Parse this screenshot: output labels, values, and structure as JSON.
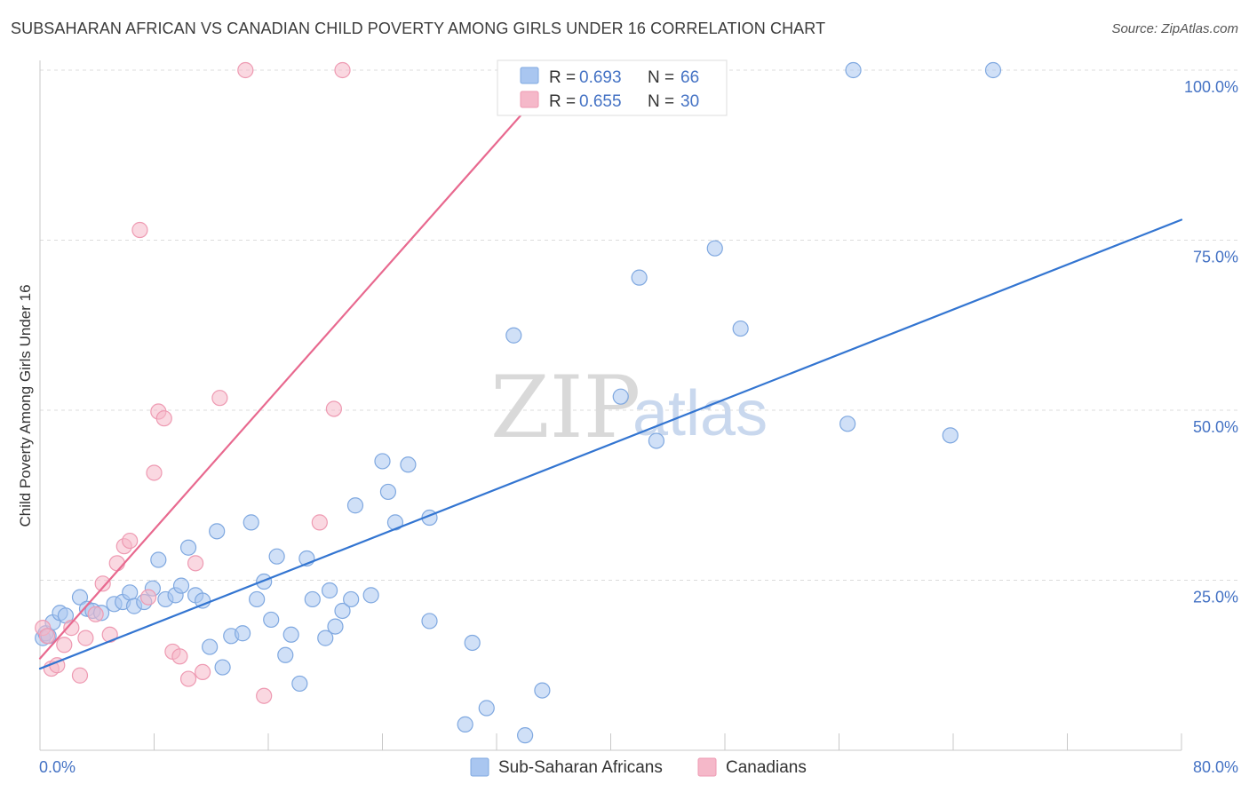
{
  "title": "SUBSAHARAN AFRICAN VS CANADIAN CHILD POVERTY AMONG GIRLS UNDER 16 CORRELATION CHART",
  "source": "Source: ZipAtlas.com",
  "watermark": {
    "zip": "ZIP",
    "atlas": "atlas"
  },
  "chart_data": {
    "type": "scatter",
    "xlabel": "",
    "ylabel": "Child Poverty Among Girls Under 16",
    "xlim": [
      0,
      80
    ],
    "ylim": [
      0,
      100
    ],
    "x_tick_labels": [
      {
        "value": 0,
        "label": "0.0%"
      },
      {
        "value": 80,
        "label": "80.0%"
      }
    ],
    "y_tick_labels": [
      {
        "value": 25,
        "label": "25.0%"
      },
      {
        "value": 50,
        "label": "50.0%"
      },
      {
        "value": 75,
        "label": "75.0%"
      },
      {
        "value": 100,
        "label": "100.0%"
      }
    ],
    "grid": "horizontal dashed",
    "legend": {
      "placement": "top-center",
      "entries": [
        {
          "r_label": "R =",
          "r_value": "0.693",
          "n_label": "N =",
          "n_value": "66",
          "color": "#a9c6f0"
        },
        {
          "r_label": "R =",
          "r_value": "0.655",
          "n_label": "N =",
          "n_value": "30",
          "color": "#f5b8c9"
        }
      ]
    },
    "series": [
      {
        "name": "Sub-Saharan Africans",
        "color": "#a9c6f0",
        "edge_color": "#7fa8e0",
        "trend_color": "#3375d1",
        "trend": {
          "x": [
            0,
            80
          ],
          "y": [
            12.0,
            78.0
          ]
        },
        "points": [
          [
            0.2,
            16.5
          ],
          [
            0.4,
            17.2
          ],
          [
            0.6,
            16.8
          ],
          [
            0.9,
            18.8
          ],
          [
            1.4,
            20.2
          ],
          [
            1.8,
            19.8
          ],
          [
            2.8,
            22.5
          ],
          [
            3.3,
            20.8
          ],
          [
            3.7,
            20.5
          ],
          [
            4.3,
            20.2
          ],
          [
            5.2,
            21.5
          ],
          [
            5.8,
            21.8
          ],
          [
            6.3,
            23.2
          ],
          [
            6.6,
            21.2
          ],
          [
            7.3,
            21.8
          ],
          [
            7.9,
            23.8
          ],
          [
            8.3,
            28.0
          ],
          [
            8.8,
            22.2
          ],
          [
            9.5,
            22.8
          ],
          [
            9.9,
            24.2
          ],
          [
            10.4,
            29.8
          ],
          [
            10.9,
            22.8
          ],
          [
            11.4,
            22.0
          ],
          [
            11.9,
            15.2
          ],
          [
            12.4,
            32.2
          ],
          [
            12.8,
            12.2
          ],
          [
            13.4,
            16.8
          ],
          [
            14.2,
            17.2
          ],
          [
            14.8,
            33.5
          ],
          [
            15.2,
            22.2
          ],
          [
            15.7,
            24.8
          ],
          [
            16.2,
            19.2
          ],
          [
            16.6,
            28.5
          ],
          [
            17.2,
            14.0
          ],
          [
            17.6,
            17.0
          ],
          [
            18.2,
            9.8
          ],
          [
            18.7,
            28.2
          ],
          [
            19.1,
            22.2
          ],
          [
            20.0,
            16.5
          ],
          [
            20.3,
            23.5
          ],
          [
            20.7,
            18.2
          ],
          [
            21.2,
            20.5
          ],
          [
            21.8,
            22.2
          ],
          [
            22.1,
            36.0
          ],
          [
            23.2,
            22.8
          ],
          [
            24.0,
            42.5
          ],
          [
            24.4,
            38.0
          ],
          [
            24.9,
            33.5
          ],
          [
            25.8,
            42.0
          ],
          [
            27.3,
            34.2
          ],
          [
            27.3,
            19.0
          ],
          [
            29.8,
            3.8
          ],
          [
            30.3,
            15.8
          ],
          [
            31.3,
            6.2
          ],
          [
            33.2,
            61.0
          ],
          [
            34.0,
            2.2
          ],
          [
            35.2,
            8.8
          ],
          [
            40.7,
            52.0
          ],
          [
            42.0,
            69.5
          ],
          [
            43.2,
            45.5
          ],
          [
            47.3,
            73.8
          ],
          [
            49.1,
            62.0
          ],
          [
            56.6,
            48.0
          ],
          [
            57.0,
            100.0
          ],
          [
            63.8,
            46.3
          ],
          [
            66.8,
            100.0
          ]
        ]
      },
      {
        "name": "Canadians",
        "color": "#f5b8c9",
        "edge_color": "#ee9ab2",
        "trend_color": "#e8698f",
        "trend": {
          "x": [
            0,
            36.5
          ],
          "y": [
            13.5,
            100.0
          ]
        },
        "points": [
          [
            0.2,
            18.0
          ],
          [
            0.5,
            16.8
          ],
          [
            0.8,
            12.0
          ],
          [
            1.2,
            12.5
          ],
          [
            1.7,
            15.5
          ],
          [
            2.2,
            18.0
          ],
          [
            2.8,
            11.0
          ],
          [
            3.2,
            16.5
          ],
          [
            3.9,
            20.0
          ],
          [
            4.4,
            24.5
          ],
          [
            4.9,
            17.0
          ],
          [
            5.4,
            27.5
          ],
          [
            5.9,
            30.0
          ],
          [
            6.3,
            30.8
          ],
          [
            7.0,
            76.5
          ],
          [
            7.6,
            22.5
          ],
          [
            8.0,
            40.8
          ],
          [
            8.3,
            49.8
          ],
          [
            8.7,
            48.8
          ],
          [
            9.3,
            14.5
          ],
          [
            9.8,
            13.8
          ],
          [
            10.4,
            10.5
          ],
          [
            10.9,
            27.5
          ],
          [
            11.4,
            11.5
          ],
          [
            12.6,
            51.8
          ],
          [
            14.4,
            100.0
          ],
          [
            15.7,
            8.0
          ],
          [
            19.6,
            33.5
          ],
          [
            20.6,
            50.2
          ],
          [
            21.2,
            100.0
          ]
        ]
      }
    ]
  }
}
